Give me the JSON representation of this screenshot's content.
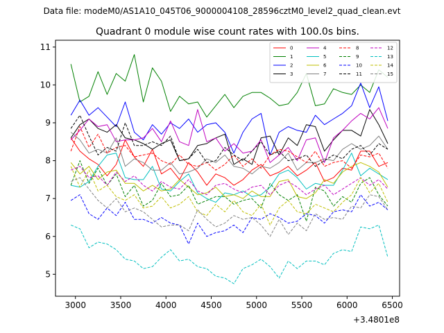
{
  "chart_data": {
    "type": "line",
    "suptitle": "Data file: modeM0/AS1A10_045T06_9000004108_28596cztM0_level2_quad_clean.evt",
    "title": "Quadrant 0 module wise count rates with 100.0s bins.",
    "xlabel": "",
    "ylabel": "",
    "x_offset_label": "+3.4801e8",
    "xlim": [
      2780,
      6580
    ],
    "ylim": [
      4.42,
      11.18
    ],
    "xticks": [
      3000,
      3500,
      4000,
      4500,
      5000,
      5500,
      6000,
      6500
    ],
    "yticks": [
      5,
      6,
      7,
      8,
      9,
      10,
      11
    ],
    "x": [
      2950,
      3050,
      3150,
      3250,
      3350,
      3450,
      3550,
      3650,
      3750,
      3850,
      3950,
      4050,
      4150,
      4250,
      4350,
      4450,
      4550,
      4650,
      4750,
      4850,
      4950,
      5050,
      5150,
      5250,
      5350,
      5450,
      5550,
      5650,
      5750,
      5850,
      5950,
      6050,
      6150,
      6250,
      6350,
      6450
    ],
    "series": [
      {
        "name": "0",
        "color": "#ff0000",
        "dashed": false,
        "values": [
          8.6,
          8.25,
          8.05,
          7.9,
          7.6,
          7.9,
          8.55,
          8.1,
          7.85,
          8.3,
          7.65,
          7.8,
          7.5,
          7.95,
          7.7,
          7.35,
          7.65,
          7.55,
          7.35,
          7.5,
          7.75,
          7.9,
          7.6,
          7.7,
          7.85,
          7.6,
          7.75,
          7.95,
          7.45,
          7.55,
          7.8,
          7.75,
          8.25,
          8.25,
          7.85,
          7.95
        ]
      },
      {
        "name": "1",
        "color": "#008000",
        "dashed": false,
        "values": [
          10.55,
          9.55,
          9.7,
          10.35,
          9.75,
          10.3,
          10.1,
          10.8,
          9.55,
          10.45,
          10.1,
          9.3,
          9.7,
          9.5,
          9.55,
          9.15,
          9.45,
          9.75,
          9.4,
          9.7,
          9.8,
          9.8,
          9.65,
          9.45,
          9.5,
          9.8,
          10.3,
          9.45,
          9.5,
          9.9,
          9.8,
          9.75,
          10.0,
          9.8,
          10.4,
          10.2
        ]
      },
      {
        "name": "2",
        "color": "#0000ff",
        "dashed": false,
        "values": [
          9.2,
          9.6,
          9.2,
          9.4,
          9.15,
          8.9,
          9.55,
          8.75,
          8.55,
          8.95,
          8.7,
          9.0,
          8.85,
          9.1,
          8.75,
          8.95,
          9.0,
          8.75,
          8.2,
          8.75,
          9.1,
          9.25,
          8.15,
          8.75,
          8.9,
          8.8,
          8.75,
          9.2,
          8.95,
          9.1,
          9.25,
          9.45,
          10.05,
          9.4,
          9.95,
          9.05
        ]
      },
      {
        "name": "3",
        "color": "#000000",
        "dashed": false,
        "values": [
          8.6,
          8.95,
          9.1,
          8.85,
          8.75,
          8.95,
          8.6,
          8.55,
          8.45,
          8.3,
          8.45,
          8.55,
          8.0,
          8.05,
          8.4,
          8.45,
          8.6,
          8.7,
          7.9,
          8.05,
          7.9,
          8.6,
          8.65,
          8.15,
          8.6,
          8.4,
          8.95,
          8.9,
          8.25,
          8.55,
          8.8,
          8.8,
          8.65,
          9.35,
          8.95,
          8.45
        ]
      },
      {
        "name": "4",
        "color": "#bf00bf",
        "dashed": false,
        "values": [
          8.55,
          8.8,
          9.1,
          8.9,
          8.95,
          8.5,
          8.55,
          8.55,
          8.6,
          8.85,
          8.5,
          9.05,
          8.5,
          8.4,
          9.35,
          8.5,
          8.6,
          8.25,
          8.45,
          8.2,
          8.25,
          8.55,
          7.95,
          8.15,
          8.35,
          8.0,
          8.55,
          8.6,
          7.95,
          8.6,
          8.8,
          9.05,
          9.25,
          9.1,
          9.4,
          8.85
        ]
      },
      {
        "name": "5",
        "color": "#00bfbf",
        "dashed": false,
        "values": [
          7.35,
          7.3,
          7.45,
          7.85,
          8.15,
          8.2,
          7.55,
          7.5,
          7.5,
          7.85,
          7.25,
          7.2,
          7.45,
          7.65,
          7.15,
          7.0,
          6.9,
          7.15,
          7.1,
          7.2,
          7.05,
          7.1,
          7.3,
          7.65,
          7.75,
          7.55,
          7.25,
          7.4,
          7.35,
          7.35,
          7.75,
          8.2,
          7.6,
          7.8,
          7.65,
          7.5
        ]
      },
      {
        "name": "6",
        "color": "#bfbf00",
        "dashed": false,
        "values": [
          7.95,
          7.65,
          7.85,
          7.5,
          7.7,
          7.75,
          7.4,
          7.4,
          7.2,
          7.35,
          7.2,
          7.25,
          7.5,
          7.3,
          7.1,
          7.15,
          7.3,
          7.05,
          7.1,
          7.0,
          7.2,
          7.05,
          7.05,
          7.45,
          7.5,
          7.05,
          7.0,
          7.15,
          7.5,
          7.4,
          7.7,
          7.85,
          7.95,
          7.85,
          7.7,
          7.3
        ]
      },
      {
        "name": "7",
        "color": "#808080",
        "dashed": false,
        "values": [
          8.75,
          8.55,
          8.2,
          8.3,
          8.2,
          8.6,
          7.85,
          8.05,
          7.95,
          7.75,
          7.75,
          7.95,
          7.65,
          7.7,
          7.8,
          8.05,
          7.95,
          8.15,
          7.85,
          7.8,
          7.65,
          7.85,
          7.8,
          7.95,
          8.2,
          7.75,
          7.95,
          7.95,
          8.05,
          8.0,
          8.3,
          8.45,
          8.3,
          8.4,
          8.65,
          8.3
        ]
      },
      {
        "name": "8",
        "color": "#ff0000",
        "dashed": true,
        "values": [
          8.25,
          8.9,
          8.35,
          8.7,
          8.2,
          8.35,
          8.4,
          8.1,
          8.15,
          8.2,
          8.0,
          7.9,
          8.15,
          7.9,
          7.85,
          7.95,
          7.75,
          7.9,
          8.15,
          7.85,
          8.05,
          7.8,
          8.15,
          8.3,
          8.25,
          8.1,
          7.95,
          8.25,
          7.85,
          7.95,
          8.0,
          7.8,
          8.15,
          8.1,
          8.2,
          7.8
        ]
      },
      {
        "name": "9",
        "color": "#008000",
        "dashed": true,
        "values": [
          7.35,
          8.0,
          7.4,
          7.8,
          7.35,
          7.65,
          7.05,
          7.35,
          6.8,
          6.95,
          7.4,
          7.05,
          7.1,
          7.35,
          6.85,
          6.95,
          7.05,
          7.05,
          6.85,
          6.95,
          7.0,
          6.75,
          7.4,
          7.1,
          6.95,
          7.1,
          6.4,
          7.3,
          7.2,
          6.8,
          7.05,
          6.9,
          7.4,
          7.55,
          7.1,
          6.8
        ]
      },
      {
        "name": "10",
        "color": "#0000ff",
        "dashed": true,
        "values": [
          6.95,
          7.1,
          6.6,
          6.45,
          6.75,
          6.55,
          6.9,
          6.45,
          6.45,
          6.35,
          6.5,
          6.35,
          6.3,
          5.8,
          6.35,
          6.0,
          6.1,
          6.15,
          6.3,
          6.1,
          6.5,
          6.45,
          6.6,
          6.5,
          6.35,
          6.4,
          6.6,
          6.55,
          6.35,
          6.65,
          6.7,
          6.65,
          7.1,
          6.8,
          6.9,
          6.7
        ]
      },
      {
        "name": "11",
        "color": "#000000",
        "dashed": true,
        "values": [
          8.85,
          9.2,
          8.65,
          8.15,
          8.35,
          8.25,
          9.0,
          8.4,
          8.4,
          8.5,
          8.4,
          8.65,
          8.0,
          8.05,
          8.3,
          7.95,
          8.0,
          8.35,
          8.15,
          8.0,
          8.25,
          8.5,
          8.15,
          8.25,
          8.0,
          8.05,
          8.15,
          7.85,
          8.0,
          8.15,
          8.05,
          8.3,
          8.4,
          8.15,
          8.45,
          8.3
        ]
      },
      {
        "name": "12",
        "color": "#bf00bf",
        "dashed": true,
        "values": [
          7.75,
          7.85,
          7.55,
          7.6,
          7.35,
          7.7,
          7.45,
          7.6,
          7.35,
          7.2,
          7.45,
          7.3,
          7.25,
          7.5,
          7.2,
          7.1,
          7.35,
          7.4,
          7.25,
          7.15,
          7.3,
          7.35,
          7.1,
          7.35,
          7.45,
          7.3,
          7.1,
          7.25,
          7.35,
          7.1,
          7.25,
          7.4,
          7.55,
          7.35,
          7.5,
          7.25
        ]
      },
      {
        "name": "13",
        "color": "#00bfbf",
        "dashed": true,
        "values": [
          6.3,
          6.2,
          5.7,
          5.85,
          5.8,
          5.65,
          5.4,
          5.35,
          5.15,
          5.2,
          5.45,
          5.65,
          5.35,
          5.4,
          5.2,
          5.15,
          4.95,
          4.9,
          4.75,
          5.15,
          5.25,
          5.4,
          5.2,
          4.9,
          5.35,
          5.15,
          5.35,
          5.35,
          5.25,
          5.55,
          5.65,
          5.6,
          6.25,
          6.2,
          6.3,
          5.45
        ]
      },
      {
        "name": "14",
        "color": "#bfbf00",
        "dashed": true,
        "values": [
          7.85,
          7.3,
          7.75,
          7.2,
          7.35,
          7.05,
          6.95,
          7.1,
          6.75,
          6.8,
          7.05,
          6.75,
          6.85,
          7.05,
          6.65,
          6.55,
          6.85,
          6.65,
          6.95,
          6.65,
          6.55,
          6.85,
          6.3,
          6.75,
          6.95,
          6.65,
          6.6,
          6.85,
          6.75,
          6.65,
          6.9,
          7.1,
          7.55,
          7.15,
          7.4,
          6.9
        ]
      },
      {
        "name": "15",
        "color": "#808080",
        "dashed": true,
        "values": [
          7.45,
          7.55,
          7.25,
          6.95,
          6.75,
          7.0,
          6.65,
          6.75,
          6.65,
          6.45,
          6.25,
          6.3,
          6.3,
          6.15,
          6.7,
          6.45,
          6.25,
          6.35,
          6.55,
          6.45,
          6.5,
          6.3,
          6.0,
          6.45,
          6.05,
          6.35,
          6.15,
          6.6,
          6.45,
          6.5,
          6.45,
          6.8,
          6.75,
          7.1,
          7.05,
          6.7
        ]
      }
    ]
  }
}
